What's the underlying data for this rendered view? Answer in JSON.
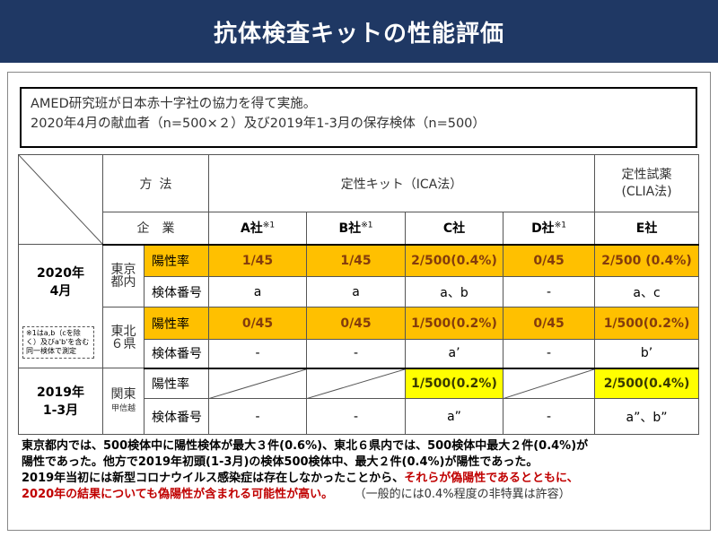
{
  "title": "抗体検査キットの性能評価",
  "summary": {
    "line1": "AMED研究班が日本赤十字社の協力を得て実施。",
    "line2": "2020年4月の献血者（n=500×２）及び2019年1-3月の保存検体（n=500）"
  },
  "table": {
    "method_label_1": "方",
    "method_label_2": "法",
    "kit_label": "定性キット（ICA法）",
    "clia_label_1": "定性試薬",
    "clia_label_2": "(CLIA法)",
    "company_label_1": "企",
    "company_label_2": "業",
    "companies": [
      {
        "name": "A社",
        "note": "※1"
      },
      {
        "name": "B社",
        "note": "※1"
      },
      {
        "name": "C社",
        "note": ""
      },
      {
        "name": "D社",
        "note": "※1"
      },
      {
        "name": "E社",
        "note": ""
      }
    ],
    "period_2020_1": "2020年",
    "period_2020_2": "4月",
    "note_text": "※1はa,b（cを除く）及びa'b'を含む同一検体で測定",
    "period_2019_1": "2019年",
    "period_2019_2": "1-3月",
    "region_tokyo_1": "東京",
    "region_tokyo_2": "都内",
    "region_tohoku_1": "東北",
    "region_tohoku_2": "６県",
    "region_kanto_1": "関東",
    "region_kanto_2": "甲信越",
    "label_positive": "陽性率",
    "label_sample": "検体番号",
    "tokyo_positive": [
      "1/45",
      "1/45",
      "2/500(0.4%)",
      "0/45",
      "2/500 (0.4%)"
    ],
    "tokyo_sample": [
      "a",
      "a",
      "a、b",
      "-",
      "a、c"
    ],
    "tohoku_positive": [
      "0/45",
      "0/45",
      "1/500(0.2%)",
      "0/45",
      "1/500(0.2%)"
    ],
    "tohoku_sample": [
      "-",
      "-",
      "a’",
      "-",
      "b’"
    ],
    "kanto_positive_c": "1/500(0.2%)",
    "kanto_positive_e": "2/500(0.4%)",
    "kanto_sample": [
      "-",
      "-",
      "a”",
      "-",
      "a”、b”"
    ]
  },
  "footer": {
    "line1": "東京都内では、500検体中に陽性検体が最大３件(0.6%)、東北６県内では、500検体中最大２件(0.4%)が",
    "line2": "陽性であった。他方で2019年初頭(1-3月)の検体500検体中、最大２件(0.4%)が陽性であった。",
    "line3_black": "2019年当初には新型コロナウイルス感染症は存在しなかったことから、",
    "line3_red": "それらが偽陽性であるとともに、",
    "line4_red": "2020年の結果についても偽陽性が含まれる可能性が高い。",
    "line4_gray": "（一般的には0.4%程度の非特異は許容）"
  },
  "colors": {
    "header_bg": "#1f3864",
    "orange_highlight": "#ffc000",
    "yellow_highlight": "#ffff00",
    "red_text": "#c00000"
  }
}
